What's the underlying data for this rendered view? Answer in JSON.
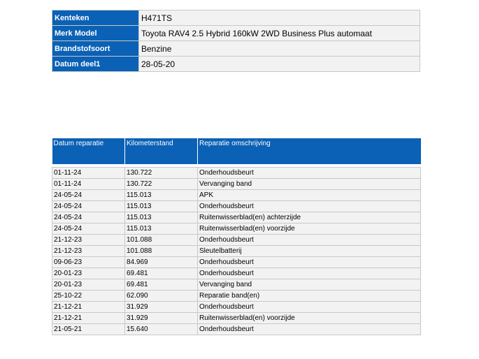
{
  "vehicle": {
    "fields": [
      {
        "label": "Kenteken",
        "value": "H471TS"
      },
      {
        "label": "Merk Model",
        "value": "Toyota RAV4 2.5 Hybrid 160kW 2WD Business Plus automaat"
      },
      {
        "label": "Brandstofsoort",
        "value": "Benzine"
      },
      {
        "label": "Datum deel1",
        "value": "28-05-20"
      }
    ]
  },
  "repairs": {
    "headers": [
      "Datum reparatie",
      "Kilometerstand",
      "Reparatie omschrijving"
    ],
    "rows": [
      [
        "01-11-24",
        "130.722",
        "Onderhoudsbeurt"
      ],
      [
        "01-11-24",
        "130.722",
        "Vervanging band"
      ],
      [
        "24-05-24",
        "115.013",
        "APK"
      ],
      [
        "24-05-24",
        "115.013",
        "Onderhoudsbeurt"
      ],
      [
        "24-05-24",
        "115.013",
        "Ruitenwisserblad(en) achterzijde"
      ],
      [
        "24-05-24",
        "115.013",
        "Ruitenwisserblad(en) voorzijde"
      ],
      [
        "21-12-23",
        "101.088",
        "Onderhoudsbeurt"
      ],
      [
        "21-12-23",
        "101.088",
        "Sleutelbatterij"
      ],
      [
        "09-06-23",
        "84.969",
        "Onderhoudsbeurt"
      ],
      [
        "20-01-23",
        "69.481",
        "Onderhoudsbeurt"
      ],
      [
        "20-01-23",
        "69.481",
        "Vervanging band"
      ],
      [
        "25-10-22",
        "62.090",
        "Reparatie band(en)"
      ],
      [
        "21-12-21",
        "31.929",
        "Onderhoudsbeurt"
      ],
      [
        "21-12-21",
        "31.929",
        "Ruitenwisserblad(en) voorzijde"
      ],
      [
        "21-05-21",
        "15.640",
        "Onderhoudsbeurt"
      ]
    ]
  }
}
